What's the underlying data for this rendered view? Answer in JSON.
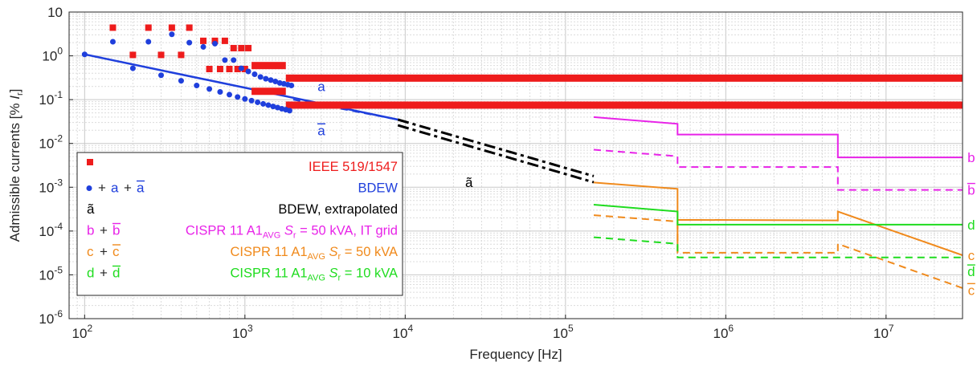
{
  "chart_data": {
    "type": "line",
    "x_scale": "log",
    "y_scale": "log",
    "xlim": [
      80,
      30000000
    ],
    "ylim": [
      1e-06,
      10
    ],
    "xlabel": "Frequency [Hz]",
    "ylabel_prefix": "Admissible currents [% ",
    "ylabel_var": "I",
    "ylabel_sub": "r",
    "ylabel_suffix": "]",
    "grid": true,
    "legend_position": "bottom-left",
    "x_ticks": [
      {
        "value": 100,
        "base": "10",
        "exp": "2"
      },
      {
        "value": 1000,
        "base": "10",
        "exp": "3"
      },
      {
        "value": 10000,
        "base": "10",
        "exp": "4"
      },
      {
        "value": 100000,
        "base": "10",
        "exp": "5"
      },
      {
        "value": 1000000,
        "base": "10",
        "exp": "6"
      },
      {
        "value": 10000000,
        "base": "10",
        "exp": "7"
      }
    ],
    "y_ticks": [
      {
        "value": 10,
        "base": "10",
        "exp": ""
      },
      {
        "value": 1,
        "base": "10",
        "exp": "0"
      },
      {
        "value": 0.1,
        "base": "10",
        "exp": "-1"
      },
      {
        "value": 0.01,
        "base": "10",
        "exp": "-2"
      },
      {
        "value": 0.001,
        "base": "10",
        "exp": "-3"
      },
      {
        "value": 0.0001,
        "base": "10",
        "exp": "-4"
      },
      {
        "value": 1e-05,
        "base": "10",
        "exp": "-5"
      },
      {
        "value": 1e-06,
        "base": "10",
        "exp": "-6"
      }
    ],
    "colors": {
      "ieee": "#ee1c1c",
      "bdew": "#1f3fdc",
      "extrap": "#000000",
      "cispr_it": "#e823e8",
      "cispr_50": "#f08a1c",
      "cispr_10": "#1fdc1f"
    },
    "ieee_points": [
      [
        150,
        4.4
      ],
      [
        200,
        1.05
      ],
      [
        250,
        4.4
      ],
      [
        300,
        1.05
      ],
      [
        350,
        4.4
      ],
      [
        400,
        1.05
      ],
      [
        450,
        4.4
      ],
      [
        550,
        2.2
      ],
      [
        650,
        2.2
      ],
      [
        750,
        2.2
      ],
      [
        850,
        1.5
      ],
      [
        950,
        1.5
      ],
      [
        1050,
        1.5
      ],
      [
        600,
        0.5
      ],
      [
        700,
        0.5
      ],
      [
        800,
        0.5
      ],
      [
        900,
        0.5
      ],
      [
        1000,
        0.5
      ]
    ],
    "ieee_bars": [
      {
        "x1": 1100,
        "x2": 1800,
        "y": 0.6
      },
      {
        "x1": 1100,
        "x2": 1800,
        "y": 0.155
      },
      {
        "x1": 1800,
        "x2": 30000000,
        "y": 0.31
      },
      {
        "x1": 1800,
        "x2": 30000000,
        "y": 0.075
      }
    ],
    "bdew_points_upper": [
      [
        100,
        1.08
      ],
      [
        150,
        2.1
      ],
      [
        250,
        2.1
      ],
      [
        350,
        3.1
      ],
      [
        450,
        2.0
      ],
      [
        550,
        1.6
      ],
      [
        650,
        1.9
      ],
      [
        750,
        0.8
      ],
      [
        850,
        0.8
      ],
      [
        950,
        0.52
      ],
      [
        1050,
        0.44
      ],
      [
        1150,
        0.38
      ],
      [
        1250,
        0.33
      ],
      [
        1350,
        0.3
      ],
      [
        1450,
        0.28
      ],
      [
        1550,
        0.26
      ],
      [
        1650,
        0.24
      ],
      [
        1750,
        0.23
      ],
      [
        1850,
        0.22
      ],
      [
        1950,
        0.21
      ]
    ],
    "bdew_points_lower": [
      [
        200,
        0.52
      ],
      [
        300,
        0.36
      ],
      [
        400,
        0.27
      ],
      [
        500,
        0.21
      ],
      [
        600,
        0.175
      ],
      [
        700,
        0.15
      ],
      [
        800,
        0.13
      ],
      [
        900,
        0.115
      ],
      [
        1000,
        0.104
      ],
      [
        1100,
        0.095
      ],
      [
        1200,
        0.087
      ],
      [
        1300,
        0.08
      ],
      [
        1400,
        0.075
      ],
      [
        1500,
        0.07
      ],
      [
        1600,
        0.066
      ],
      [
        1700,
        0.062
      ],
      [
        1800,
        0.059
      ],
      [
        1900,
        0.056
      ]
    ],
    "series": [
      {
        "name": "a",
        "style": "solid",
        "color": "bdew",
        "width": 2.5,
        "points": [
          [
            100,
            1.08
          ],
          [
            9000,
            0.035
          ]
        ]
      },
      {
        "name": "ā",
        "style": "dashed",
        "color": "bdew",
        "width": 2,
        "points": [
          [
            2000,
            0.1
          ],
          [
            9000,
            0.035
          ]
        ]
      },
      {
        "name": "ã",
        "style": "dashdot",
        "color": "extrap",
        "width": 3,
        "points": [
          [
            9000,
            0.035
          ],
          [
            150000,
            0.0018
          ]
        ]
      },
      {
        "name": "ã",
        "style": "dashdot",
        "color": "extrap",
        "width": 3,
        "points": [
          [
            9000,
            0.026
          ],
          [
            150000,
            0.0013
          ]
        ]
      },
      {
        "name": "b",
        "style": "solid",
        "color": "cispr_it",
        "width": 2,
        "points": [
          [
            150000,
            0.04
          ],
          [
            500000,
            0.028
          ],
          [
            500000,
            0.016
          ],
          [
            5000000,
            0.016
          ],
          [
            5000000,
            0.0048
          ],
          [
            30000000,
            0.0048
          ]
        ]
      },
      {
        "name": "b̄",
        "style": "dashed",
        "color": "cispr_it",
        "width": 2,
        "points": [
          [
            150000,
            0.0072
          ],
          [
            500000,
            0.0051
          ],
          [
            500000,
            0.0029
          ],
          [
            5000000,
            0.0029
          ],
          [
            5000000,
            0.00087
          ],
          [
            30000000,
            0.00087
          ]
        ]
      },
      {
        "name": "c",
        "style": "solid",
        "color": "cispr_50",
        "width": 2,
        "points": [
          [
            150000,
            0.00128
          ],
          [
            500000,
            0.00092
          ],
          [
            500000,
            3.3e-05
          ],
          [
            500000,
            0.00018
          ],
          [
            5000000,
            0.000175
          ],
          [
            5000000,
            0.00028
          ],
          [
            30000000,
            2.8e-05
          ]
        ]
      },
      {
        "name": "c̄",
        "style": "dashed",
        "color": "cispr_50",
        "width": 2,
        "points": [
          [
            150000,
            0.00023
          ],
          [
            500000,
            0.000165
          ],
          [
            500000,
            3.2e-05
          ],
          [
            5000000,
            3.2e-05
          ],
          [
            5000000,
            5.1e-05
          ],
          [
            30000000,
            5e-06
          ]
        ]
      },
      {
        "name": "d",
        "style": "solid",
        "color": "cispr_10",
        "width": 2,
        "points": [
          [
            150000,
            0.0004
          ],
          [
            500000,
            0.00028
          ],
          [
            500000,
            0.00014
          ],
          [
            30000000,
            0.00014
          ]
        ]
      },
      {
        "name": "d̄",
        "style": "dashed",
        "color": "cispr_10",
        "width": 2,
        "points": [
          [
            150000,
            7.2e-05
          ],
          [
            500000,
            5.1e-05
          ],
          [
            500000,
            2.5e-05
          ],
          [
            30000000,
            2.5e-05
          ]
        ]
      }
    ],
    "annotations": [
      {
        "text": "a",
        "x": 3000,
        "y": 0.2,
        "color": "bdew"
      },
      {
        "text": "a",
        "bar": true,
        "x": 3000,
        "y": 0.02,
        "color": "bdew"
      },
      {
        "text": "ã",
        "x": 25000,
        "y": 0.0013,
        "color": "extrap"
      },
      {
        "text": "b",
        "x": 34000000,
        "y": 0.0048,
        "color": "cispr_it"
      },
      {
        "text": "b",
        "bar": true,
        "x": 34000000,
        "y": 0.00087,
        "color": "cispr_it"
      },
      {
        "text": "d",
        "x": 34000000,
        "y": 0.00014,
        "color": "cispr_10"
      },
      {
        "text": "c",
        "x": 34000000,
        "y": 2.8e-05,
        "color": "cispr_50"
      },
      {
        "text": "d",
        "bar": true,
        "x": 34000000,
        "y": 1.2e-05,
        "color": "cispr_10"
      },
      {
        "text": "c",
        "bar": true,
        "x": 34000000,
        "y": 4.5e-06,
        "color": "cispr_50"
      }
    ],
    "legend": [
      {
        "label": "IEEE 519/1547",
        "color": "ieee",
        "marker": "square"
      },
      {
        "label": "BDEW",
        "color": "bdew",
        "marker": "dot",
        "k1": "a",
        "k2": "a"
      },
      {
        "label": "BDEW, extrapolated",
        "color": "extrap",
        "k1": "ã"
      },
      {
        "label_pre": "CISPR 11 A1",
        "label_sub": "AVG",
        "label_var": "S",
        "label_varsub": "r",
        "label_post": " = 50 kVA, IT grid",
        "color": "cispr_it",
        "k1": "b",
        "k2": "b"
      },
      {
        "label_pre": "CISPR 11 A1",
        "label_sub": "AVG",
        "label_var": "S",
        "label_varsub": "r",
        "label_post": " = 50 kVA",
        "color": "cispr_50",
        "k1": "c",
        "k2": "c"
      },
      {
        "label_pre": "CISPR 11 A1",
        "label_sub": "AVG",
        "label_var": "S",
        "label_varsub": "r",
        "label_post": " = 10 kVA",
        "color": "cispr_10",
        "k1": "d",
        "k2": "d"
      }
    ]
  }
}
